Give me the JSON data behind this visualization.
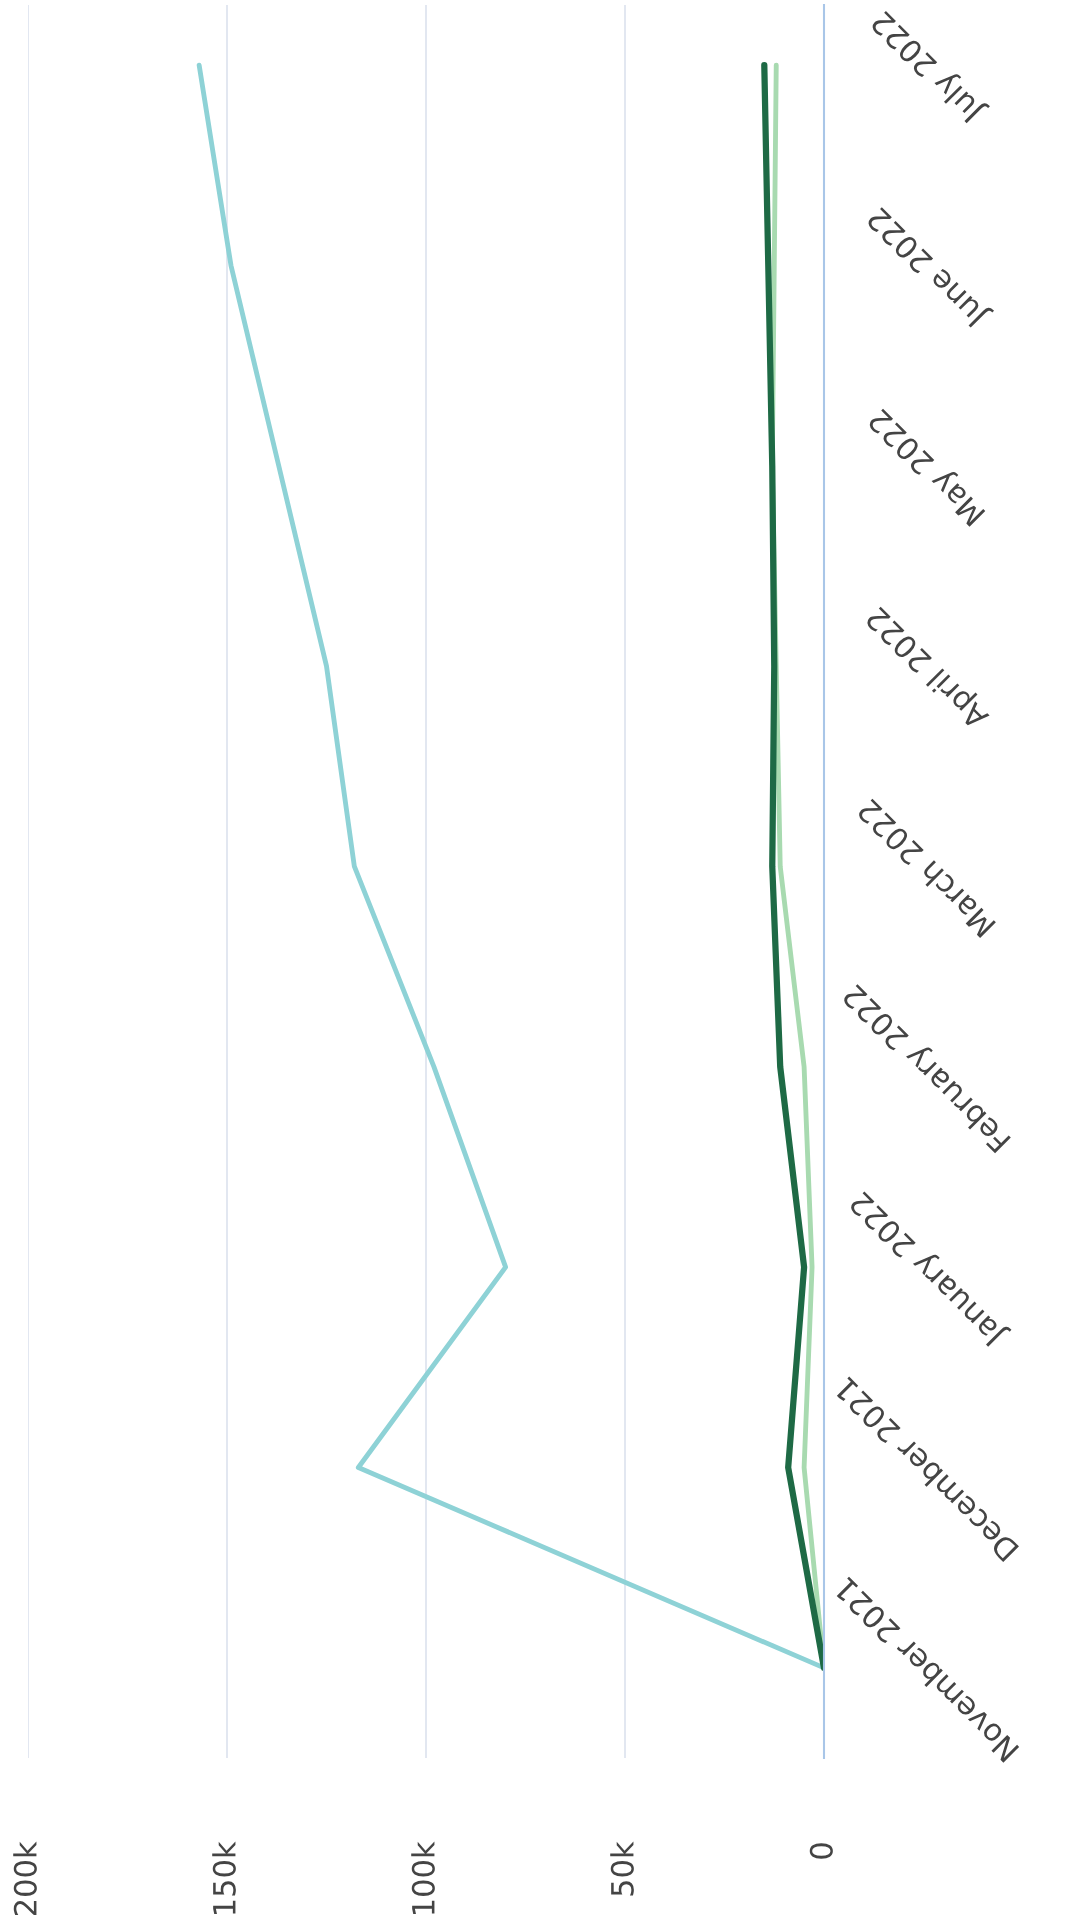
{
  "chart_data": {
    "type": "line",
    "orientation": "horizontal",
    "categories": [
      "July 2022",
      "June 2022",
      "May 2022",
      "April 2022",
      "March 2022",
      "February 2022",
      "January 2022",
      "December 2021",
      "November 2021"
    ],
    "series": [
      {
        "color": "#8ed2d6",
        "values": [
          157000,
          149000,
          137000,
          125000,
          118000,
          98000,
          80000,
          117000,
          0
        ]
      },
      {
        "color": "#a8dab0",
        "values": [
          12000,
          12500,
          13000,
          12000,
          11000,
          5000,
          3000,
          5000,
          0
        ]
      },
      {
        "color": "#1e6a45",
        "values": [
          15000,
          14000,
          13000,
          12500,
          13000,
          11000,
          5000,
          9000,
          0
        ]
      }
    ],
    "xlim": [
      200000,
      0
    ],
    "xticks": [
      {
        "value": 200000,
        "label": "200k"
      },
      {
        "value": 150000,
        "label": "150k"
      },
      {
        "value": 100000,
        "label": "100k"
      },
      {
        "value": 50000,
        "label": "50k"
      },
      0
    ],
    "grid": "x"
  }
}
